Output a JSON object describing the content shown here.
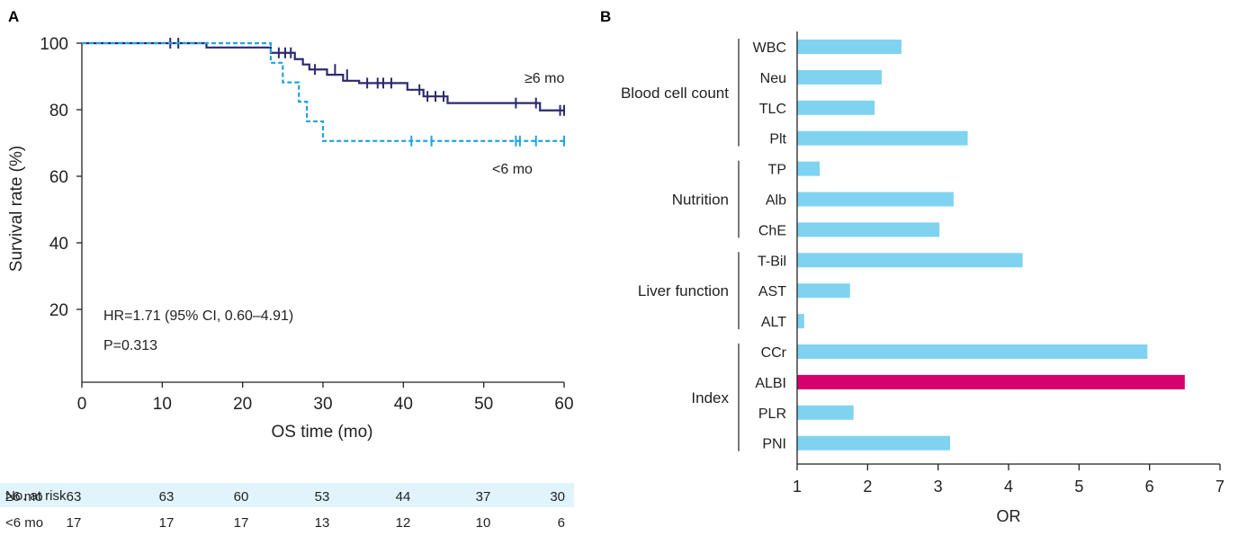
{
  "chart_data": [
    {
      "panel_label": "A",
      "type": "line",
      "subtype": "kaplan-meier",
      "xlabel": "OS time (mo)",
      "ylabel": "Survival rate (%)",
      "xlim": [
        0,
        60
      ],
      "ylim": [
        0,
        100
      ],
      "xticks": [
        0,
        10,
        20,
        30,
        40,
        50,
        60
      ],
      "yticks": [
        20,
        40,
        60,
        80,
        100
      ],
      "grid": false,
      "annotations": [
        "HR=1.71 (95% CI, 0.60–4.91)",
        "P=0.313"
      ],
      "series": [
        {
          "name": "≥6 mo",
          "color": "#2b2a6e",
          "line_style": "solid",
          "steps": [
            [
              0,
              100
            ],
            [
              15.5,
              98.7
            ],
            [
              23.5,
              97.1
            ],
            [
              26.5,
              95.2
            ],
            [
              27.5,
              93.6
            ],
            [
              28.3,
              92.1
            ],
            [
              30.5,
              90.5
            ],
            [
              32.5,
              88.7
            ],
            [
              34.5,
              88.0
            ],
            [
              40.5,
              86.0
            ],
            [
              42.5,
              84.0
            ],
            [
              45.5,
              82.0
            ],
            [
              57.0,
              79.8
            ],
            [
              60,
              79.8
            ]
          ],
          "censored": [
            [
              11,
              100
            ],
            [
              12,
              100
            ],
            [
              24.5,
              97.1
            ],
            [
              25.3,
              97.1
            ],
            [
              26,
              97.1
            ],
            [
              29,
              92.1
            ],
            [
              31.5,
              92.1
            ],
            [
              33,
              90.5
            ],
            [
              35.5,
              88.0
            ],
            [
              36.8,
              88.0
            ],
            [
              37.5,
              88.0
            ],
            [
              38.5,
              88.0
            ],
            [
              42,
              86.0
            ],
            [
              43,
              84.0
            ],
            [
              44,
              84.0
            ],
            [
              45,
              84.0
            ],
            [
              54,
              82.0
            ],
            [
              56.5,
              82.0
            ],
            [
              59.5,
              79.8
            ],
            [
              60,
              79.8
            ]
          ]
        },
        {
          "name": "<6 mo",
          "color": "#1ea5df",
          "line_style": "dashed",
          "steps": [
            [
              0,
              100
            ],
            [
              23.5,
              94.1
            ],
            [
              25,
              88.2
            ],
            [
              27,
              82.4
            ],
            [
              28,
              76.5
            ],
            [
              30,
              70.6
            ],
            [
              60,
              70.6
            ]
          ],
          "censored": [
            [
              41,
              70.6
            ],
            [
              43.5,
              70.6
            ],
            [
              54,
              70.6
            ],
            [
              54.5,
              70.6
            ],
            [
              56.5,
              70.6
            ],
            [
              60,
              70.6
            ]
          ]
        }
      ],
      "risk_table": {
        "title": "No. at risk",
        "times": [
          0,
          10,
          20,
          30,
          40,
          50,
          60
        ],
        "rows": [
          {
            "label": "≥6 mo",
            "values": [
              63,
              63,
              60,
              53,
              44,
              37,
              30
            ]
          },
          {
            "label": "<6 mo",
            "values": [
              17,
              17,
              17,
              13,
              12,
              10,
              6
            ]
          }
        ]
      }
    },
    {
      "panel_label": "B",
      "type": "bar",
      "orientation": "horizontal",
      "xlabel": "OR",
      "xlim": [
        1,
        7
      ],
      "xticks": [
        1,
        2,
        3,
        4,
        5,
        6,
        7
      ],
      "grid": false,
      "bar_color": "#7fd3f1",
      "highlight_color": "#d6006f",
      "groups": [
        {
          "name": "Blood cell count",
          "items": [
            {
              "label": "WBC",
              "value": 2.48
            },
            {
              "label": "Neu",
              "value": 2.2
            },
            {
              "label": "TLC",
              "value": 2.1
            },
            {
              "label": "Plt",
              "value": 3.42
            }
          ]
        },
        {
          "name": "Nutrition",
          "items": [
            {
              "label": "TP",
              "value": 1.32
            },
            {
              "label": "Alb",
              "value": 3.22
            },
            {
              "label": "ChE",
              "value": 3.02
            }
          ]
        },
        {
          "name": "Liver function",
          "items": [
            {
              "label": "T-Bil",
              "value": 4.2
            },
            {
              "label": "AST",
              "value": 1.75
            },
            {
              "label": "ALT",
              "value": 1.1
            }
          ]
        },
        {
          "name": "Index",
          "items": [
            {
              "label": "CCr",
              "value": 5.97
            },
            {
              "label": "ALBI",
              "value": 6.5,
              "highlight": true
            },
            {
              "label": "PLR",
              "value": 1.8
            },
            {
              "label": "PNI",
              "value": 3.17
            }
          ]
        }
      ]
    }
  ]
}
